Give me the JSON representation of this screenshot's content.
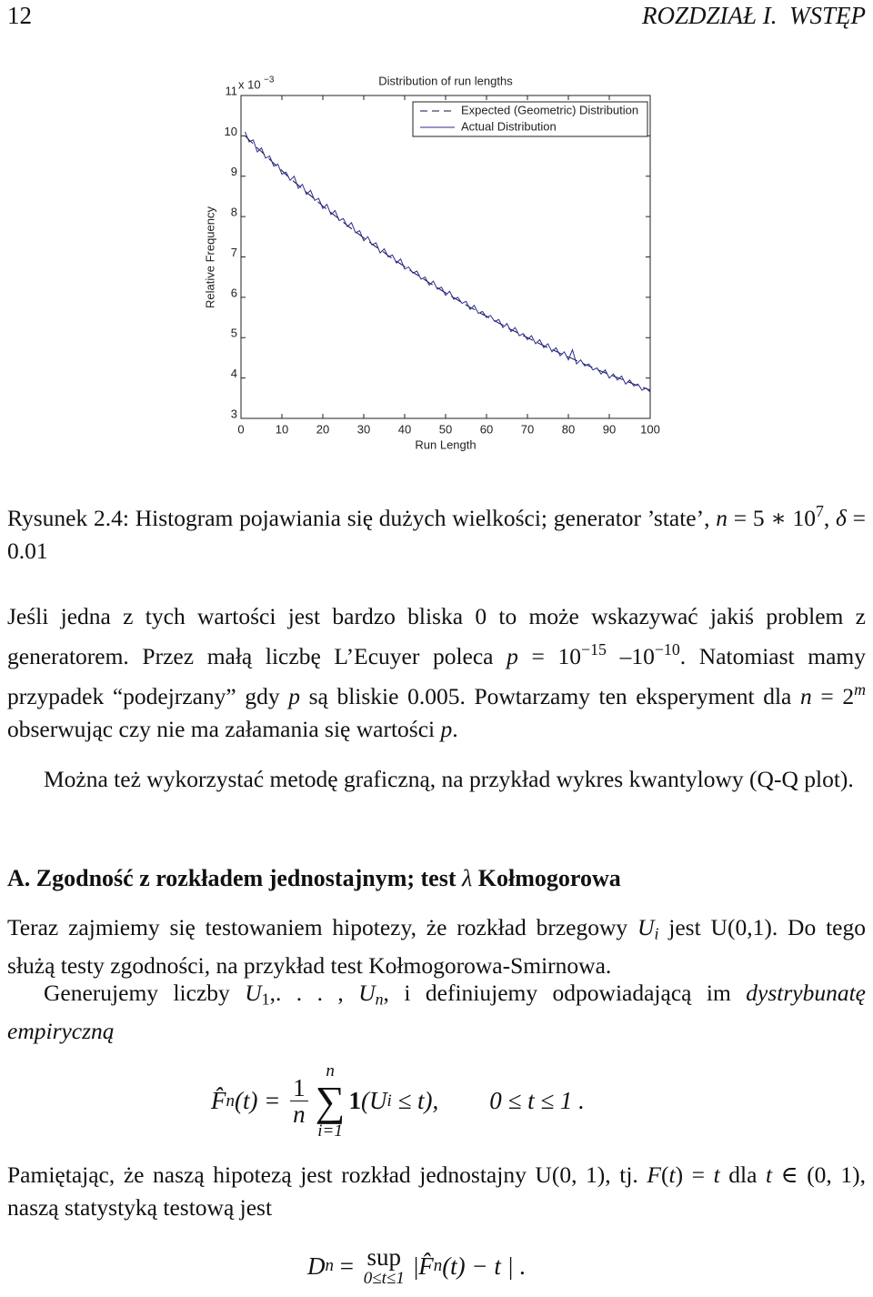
{
  "header": {
    "page": "12",
    "running_title": "ROZDZIAŁ I.  WSTĘP"
  },
  "chart_data": {
    "type": "line",
    "title": "Distribution of run lengths",
    "xlabel": "Run Length",
    "ylabel": "Relative Frequency",
    "y_multiplier": {
      "base": "x 10",
      "exponent": "−3"
    },
    "x": [
      1,
      2,
      3,
      4,
      5,
      6,
      7,
      8,
      9,
      10,
      11,
      12,
      13,
      14,
      15,
      16,
      17,
      18,
      19,
      20,
      21,
      22,
      23,
      24,
      25,
      26,
      27,
      28,
      29,
      30,
      31,
      32,
      33,
      34,
      35,
      36,
      37,
      38,
      39,
      40,
      41,
      42,
      43,
      44,
      45,
      46,
      47,
      48,
      49,
      50,
      51,
      52,
      53,
      54,
      55,
      56,
      57,
      58,
      59,
      60,
      61,
      62,
      63,
      64,
      65,
      66,
      67,
      68,
      69,
      70,
      71,
      72,
      73,
      74,
      75,
      76,
      77,
      78,
      79,
      80,
      81,
      82,
      83,
      84,
      85,
      86,
      87,
      88,
      89,
      90,
      91,
      92,
      93,
      94,
      95,
      96,
      97,
      98,
      99,
      100
    ],
    "xlim": [
      0,
      100
    ],
    "ylim": [
      3,
      11
    ],
    "xticks": [
      0,
      10,
      20,
      30,
      40,
      50,
      60,
      70,
      80,
      90,
      100
    ],
    "yticks": [
      3,
      4,
      5,
      6,
      7,
      8,
      9,
      10,
      11
    ],
    "grid": false,
    "legend": "upper right",
    "series": [
      {
        "name": "Expected (Geometric) Distribution",
        "color": "#10104a",
        "dash": true,
        "values": [
          10,
          9.9,
          9.8,
          9.7,
          9.61,
          9.51,
          9.42,
          9.32,
          9.23,
          9.14,
          9.04,
          8.95,
          8.86,
          8.78,
          8.69,
          8.6,
          8.52,
          8.43,
          8.35,
          8.26,
          8.18,
          8.1,
          8.02,
          7.94,
          7.86,
          7.78,
          7.7,
          7.62,
          7.55,
          7.47,
          7.4,
          7.32,
          7.25,
          7.18,
          7.11,
          7.03,
          6.96,
          6.89,
          6.83,
          6.76,
          6.69,
          6.62,
          6.56,
          6.49,
          6.43,
          6.36,
          6.3,
          6.24,
          6.17,
          6.11,
          6.05,
          5.99,
          5.93,
          5.87,
          5.81,
          5.75,
          5.7,
          5.64,
          5.58,
          5.53,
          5.47,
          5.42,
          5.36,
          5.31,
          5.26,
          5.2,
          5.15,
          5.1,
          5.05,
          5.0,
          4.95,
          4.9,
          4.85,
          4.8,
          4.75,
          4.71,
          4.66,
          4.61,
          4.57,
          4.52,
          4.48,
          4.43,
          4.39,
          4.34,
          4.3,
          4.26,
          4.21,
          4.17,
          4.13,
          4.09,
          4.05,
          4.01,
          3.97,
          3.93,
          3.89,
          3.85,
          3.81,
          3.77,
          3.74,
          3.7
        ]
      },
      {
        "name": "Actual Distribution",
        "color": "#2b2b8c",
        "dash": false,
        "values": [
          10.1,
          9.85,
          9.9,
          9.6,
          9.7,
          9.45,
          9.5,
          9.25,
          9.3,
          9.05,
          9.1,
          8.9,
          9.0,
          8.7,
          8.8,
          8.55,
          8.65,
          8.4,
          8.45,
          8.2,
          8.3,
          8.05,
          8.15,
          7.9,
          7.95,
          7.75,
          7.85,
          7.6,
          7.65,
          7.4,
          7.5,
          7.3,
          7.35,
          7.1,
          7.2,
          7.0,
          7.05,
          6.85,
          6.95,
          6.7,
          6.75,
          6.6,
          6.65,
          6.45,
          6.5,
          6.3,
          6.4,
          6.2,
          6.25,
          6.05,
          6.15,
          5.95,
          6.0,
          5.85,
          5.9,
          5.7,
          5.8,
          5.6,
          5.65,
          5.5,
          5.55,
          5.4,
          5.45,
          5.25,
          5.35,
          5.15,
          5.25,
          5.05,
          5.1,
          4.95,
          5.05,
          4.85,
          4.95,
          4.75,
          4.85,
          4.65,
          4.75,
          4.55,
          4.65,
          4.45,
          4.7,
          4.35,
          4.45,
          4.3,
          4.35,
          4.2,
          4.25,
          4.1,
          4.2,
          4.0,
          4.1,
          3.95,
          4.05,
          3.85,
          3.95,
          3.8,
          3.85,
          3.7,
          3.75,
          3.65
        ]
      }
    ]
  },
  "caption": [
    "Rysunek 2.4: Histogram pojawiania się dużych wielkości; generator ’state’, ",
    "n",
    " = 5 ∗ 10",
    "7",
    ", ",
    "δ",
    " = 0.01"
  ],
  "paragraphs": [
    [
      "Jeśli jedna z tych wartości jest bardzo bliska 0 to może wskazywać jakiś problem z generatorem. Przez małą liczbę L’Ecuyer poleca ",
      "p",
      " = 10",
      "−15",
      " –10",
      "−10",
      ". Natomiast mamy przypadek “podejrzany” gdy ",
      "p",
      " są bliskie 0.005. Powtarzamy ten eksperyment dla ",
      "n",
      " = 2",
      "m",
      " obserwując czy nie ma załamania się wartości ",
      "p",
      "."
    ],
    [
      "Można też wykorzystać metodę graficzną, na przykład wykres kwantylowy (Q-Q plot)."
    ],
    [
      "Teraz zajmiemy się testowaniem hipotezy, że rozkład brzegowy ",
      "U",
      "i",
      " jest U(0,1). Do tego służą testy zgodności, na przykład test Kołmogorowa-Smirnowa."
    ],
    [
      "Generujemy liczby ",
      "U",
      "1",
      ",. . . , ",
      "U",
      "n",
      ", i definiujemy odpowiadającą im ",
      "dystrybunatę empiryczną"
    ],
    [
      "Pamiętając, że naszą hipotezą jest rozkład jednostajny U(0, 1), tj. ",
      "F",
      "(",
      "t",
      ") = ",
      "t",
      " dla ",
      "t",
      " ∈ (0, 1), naszą statystyką testową jest"
    ]
  ],
  "section_heading": [
    "A. Zgodność z rozkładem jednostajnym; test ",
    "λ",
    " Kołmogorowa"
  ],
  "equation_1": {
    "lhs": "F̂",
    "lhs_sub": "n",
    "eq": "(t) = ",
    "num": "1",
    "den": "n",
    "sum_top": "n",
    "sum": "∑",
    "sum_bottom": "i=1",
    "indicator": "1",
    "arg": "(U",
    "arg_sub": "i",
    "arg_rest": " ≤ t),",
    "range": "0 ≤ t ≤ 1 ."
  },
  "equation_2": {
    "lhs": "D",
    "lhs_sub": "n",
    "eq": " = ",
    "op": "sup",
    "op_sub": "0≤t≤1",
    "abs_open": "|",
    "hat": "F̂",
    "hat_sub": "n",
    "rest": "(t) − t",
    "abs_close": "| ."
  }
}
